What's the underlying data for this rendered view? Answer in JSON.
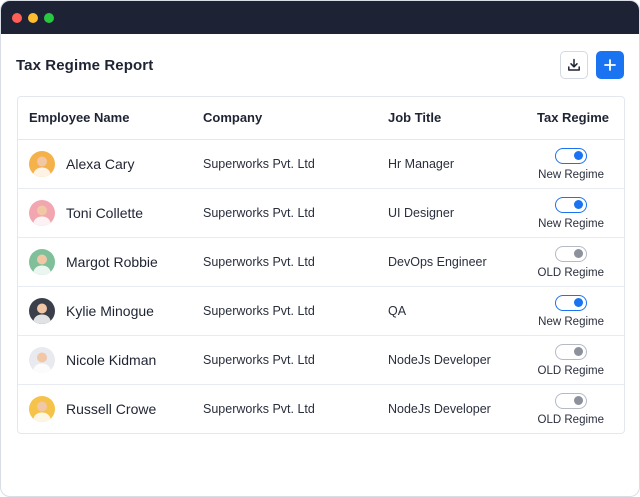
{
  "window": {
    "controls": [
      "close",
      "minimize",
      "maximize"
    ]
  },
  "header": {
    "title": "Tax Regime Report",
    "download_icon": "download-icon",
    "add_icon": "plus-icon"
  },
  "table": {
    "columns": [
      "Employee Name",
      "Company",
      "Job Title",
      "Tax Regime"
    ],
    "rows": [
      {
        "name": "Alexa Cary",
        "company": "Superworks Pvt. Ltd",
        "job": "Hr Manager",
        "regime": "New Regime",
        "toggle": "on",
        "avatar_bg": "#f5b14a"
      },
      {
        "name": "Toni Collette",
        "company": "Superworks Pvt. Ltd",
        "job": "UI Designer",
        "regime": "New Regime",
        "toggle": "on",
        "avatar_bg": "#f2a6b0"
      },
      {
        "name": "Margot Robbie",
        "company": "Superworks Pvt. Ltd",
        "job": "DevOps Engineer",
        "regime": "OLD Regime",
        "toggle": "off",
        "avatar_bg": "#7fbf9a"
      },
      {
        "name": "Kylie Minogue",
        "company": "Superworks Pvt. Ltd",
        "job": "QA",
        "regime": "New Regime",
        "toggle": "on",
        "avatar_bg": "#3a3f4a"
      },
      {
        "name": "Nicole Kidman",
        "company": "Superworks Pvt. Ltd",
        "job": "NodeJs Developer",
        "regime": "OLD Regime",
        "toggle": "off",
        "avatar_bg": "#e8eaef"
      },
      {
        "name": "Russell Crowe",
        "company": "Superworks Pvt. Ltd",
        "job": "NodeJs Developer",
        "regime": "OLD Regime",
        "toggle": "off",
        "avatar_bg": "#f5c24a"
      }
    ]
  },
  "colors": {
    "accent": "#1a73f0",
    "titlebar": "#1e2235",
    "toggle_off": "#8c919c"
  }
}
